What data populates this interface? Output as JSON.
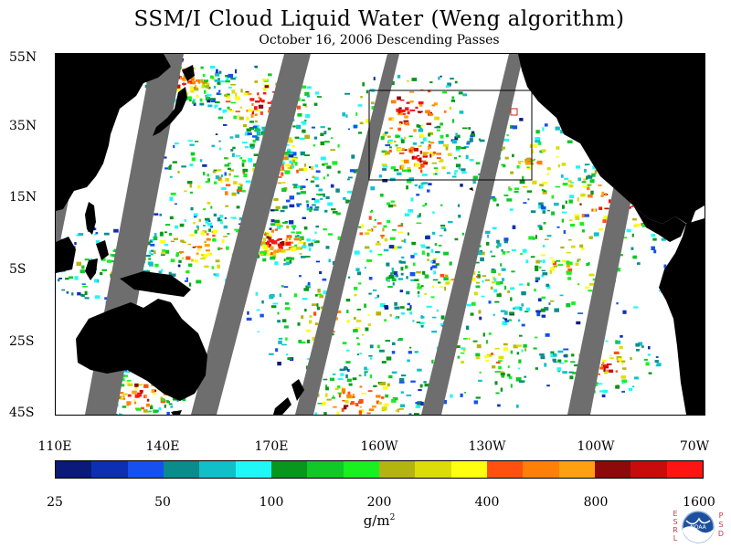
{
  "title": "SSM/I Cloud Liquid Water (Weng algorithm)",
  "subtitle": "October 16, 2006  Descending Passes",
  "latitude_labels": [
    "55N",
    "35N",
    "15N",
    "5S",
    "25S",
    "45S"
  ],
  "longitude_labels": [
    "110E",
    "140E",
    "170E",
    "160W",
    "130W",
    "100W",
    "70W"
  ],
  "colorbar": {
    "colors": [
      "#0a1a78",
      "#0c2fb4",
      "#1650f0",
      "#0a8c8c",
      "#10c0c8",
      "#20f8f8",
      "#08961c",
      "#10c828",
      "#18f020",
      "#b4b410",
      "#dcdc08",
      "#ffff10",
      "#ff5010",
      "#ff8008",
      "#ffa010",
      "#8c0a0a",
      "#c80c0c",
      "#ff1414"
    ],
    "tick_labels": [
      "25",
      "50",
      "100",
      "200",
      "400",
      "800",
      "1600"
    ],
    "units_base": "g/m",
    "units_exp": "2"
  },
  "logo": {
    "center_text": "NOAA",
    "left_letters": [
      "E",
      "S",
      "R",
      "L"
    ],
    "right_letters": [
      "P",
      "S",
      "D"
    ]
  },
  "map_colors": {
    "land": "#000000",
    "no_data": "#6e6e6e",
    "clear": "#ffffff"
  }
}
